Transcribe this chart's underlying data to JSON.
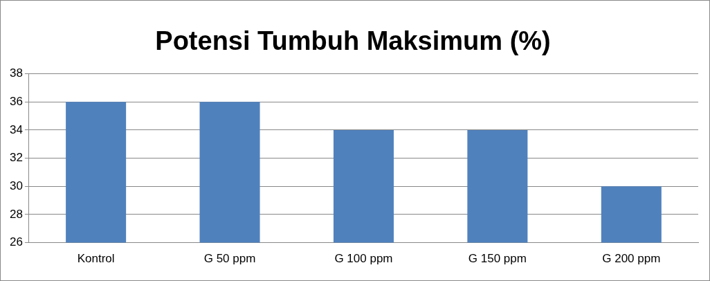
{
  "chart_data": {
    "type": "bar",
    "title": "Potensi Tumbuh Maksimum (%)",
    "categories": [
      "Kontrol",
      "G 50 ppm",
      "G 100 ppm",
      "G 150 ppm",
      "G 200 ppm"
    ],
    "values": [
      36,
      36,
      34,
      34,
      30
    ],
    "color": "#4f81bd",
    "ylim": [
      26,
      38
    ],
    "yticks": [
      26,
      28,
      30,
      32,
      34,
      36,
      38
    ],
    "grid": "y"
  }
}
